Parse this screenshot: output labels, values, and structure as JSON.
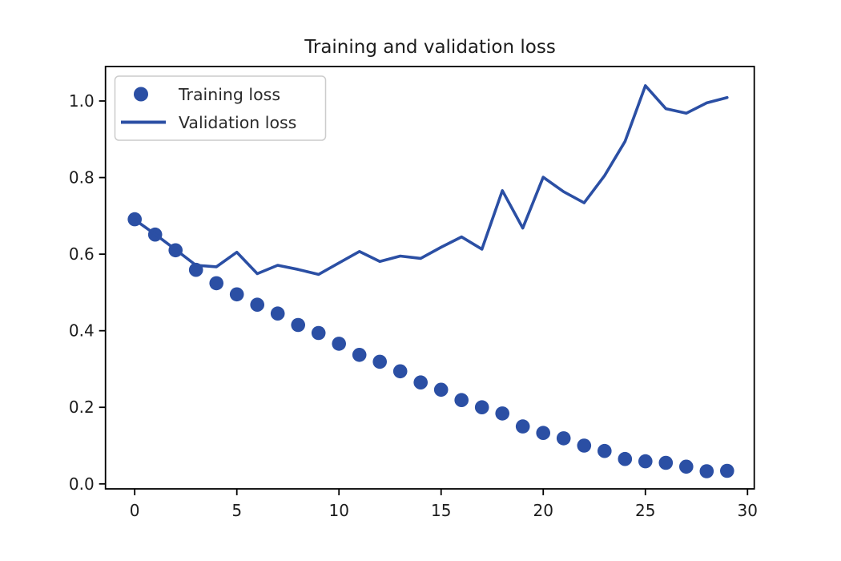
{
  "figure": {
    "background": "#ffffff",
    "accent_color": "#2b4fa4",
    "text_color": "#1c1c1c"
  },
  "chart_data": {
    "type": "scatter+line",
    "title": "Training and validation loss",
    "x": [
      0,
      1,
      2,
      3,
      4,
      5,
      6,
      7,
      8,
      9,
      10,
      11,
      12,
      13,
      14,
      15,
      16,
      17,
      18,
      19,
      20,
      21,
      22,
      23,
      24,
      25,
      26,
      27,
      28,
      29
    ],
    "series": [
      {
        "name": "Training loss",
        "style": "scatter",
        "marker": "circle",
        "values": [
          0.691,
          0.651,
          0.61,
          0.559,
          0.524,
          0.495,
          0.468,
          0.445,
          0.415,
          0.394,
          0.366,
          0.337,
          0.319,
          0.294,
          0.265,
          0.246,
          0.219,
          0.2,
          0.184,
          0.15,
          0.133,
          0.119,
          0.1,
          0.086,
          0.065,
          0.059,
          0.055,
          0.045,
          0.033,
          0.034
        ]
      },
      {
        "name": "Validation loss",
        "style": "line",
        "values": [
          0.69,
          0.652,
          0.612,
          0.571,
          0.567,
          0.605,
          0.549,
          0.571,
          0.56,
          0.547,
          0.577,
          0.607,
          0.581,
          0.595,
          0.589,
          0.618,
          0.645,
          0.613,
          0.766,
          0.668,
          0.801,
          0.763,
          0.734,
          0.805,
          0.894,
          1.04,
          0.98,
          0.968,
          0.995,
          1.009
        ]
      }
    ],
    "xlabel": "",
    "ylabel": "",
    "x_ticks": [
      0,
      5,
      10,
      15,
      20,
      25,
      30
    ],
    "y_ticks": [
      0.0,
      0.2,
      0.4,
      0.6,
      0.8,
      1.0
    ],
    "xlim": [
      -1.43,
      30.33
    ],
    "ylim": [
      -0.013,
      1.09
    ],
    "grid": false,
    "legend_position": "upper left",
    "color": "#2b4fa4"
  },
  "legend": {
    "items": [
      {
        "label": "Training loss",
        "marker": "dot-icon"
      },
      {
        "label": "Validation loss",
        "marker": "line-icon"
      }
    ]
  }
}
